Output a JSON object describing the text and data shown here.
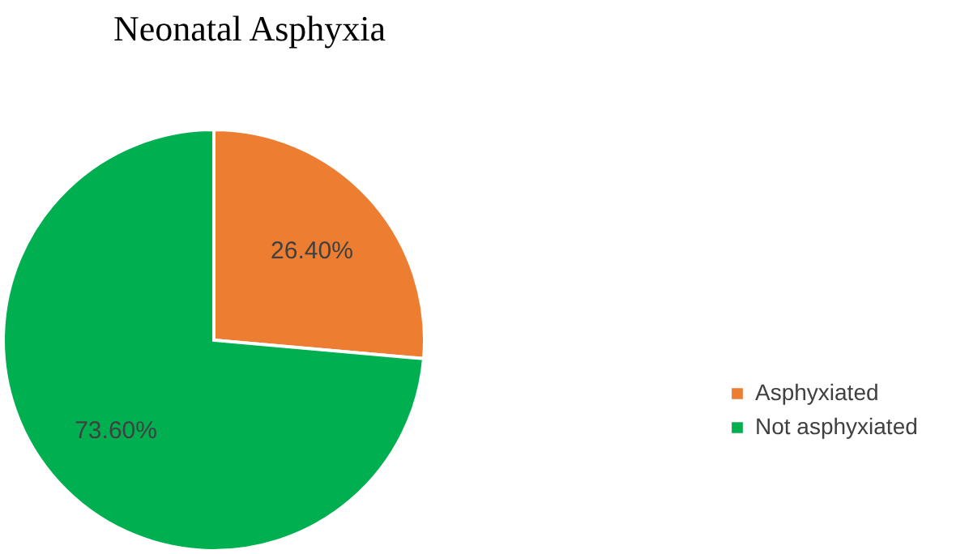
{
  "chart_data": {
    "type": "pie",
    "title": "Neonatal Asphyxia",
    "categories": [
      "Asphyxiated",
      "Not asphyxiated"
    ],
    "values": [
      26.4,
      73.6
    ],
    "value_labels": [
      "26.40%",
      "73.60%"
    ],
    "colors": [
      "#ed7d31",
      "#00b050"
    ],
    "legend": "right"
  }
}
